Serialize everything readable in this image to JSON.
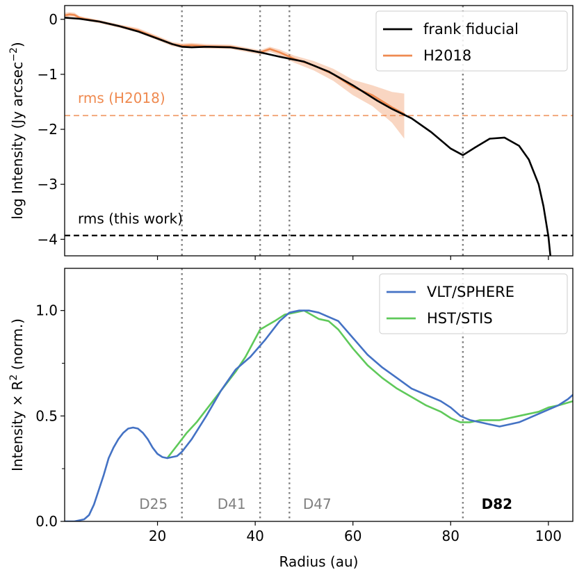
{
  "chart_data": [
    {
      "panel": "top",
      "type": "line",
      "title": "",
      "xlabel": "",
      "ylabel": "log Intensity (Jy arcsec",
      "ylabel_sup": "−2",
      "ylabel_close": ")",
      "xlim": [
        1,
        105
      ],
      "ylim": [
        -4.3,
        0.25
      ],
      "xticks": [
        20,
        40,
        60,
        80,
        100
      ],
      "yticks": [
        0,
        -1,
        -2,
        -3,
        -4
      ],
      "ytick_labels": [
        "0",
        "−1",
        "−2",
        "−3",
        "−4"
      ],
      "series": [
        {
          "name": "frank fiducial",
          "color": "#000000",
          "x": [
            1,
            4,
            8,
            12,
            16,
            20,
            23,
            25,
            27,
            30,
            35,
            38,
            41,
            45,
            50,
            55,
            60,
            65,
            68,
            72,
            76,
            80,
            82.5,
            85,
            88,
            91,
            94,
            96,
            98,
            99,
            100,
            100.4
          ],
          "y": [
            0.03,
            0.01,
            -0.04,
            -0.12,
            -0.22,
            -0.35,
            -0.45,
            -0.5,
            -0.51,
            -0.5,
            -0.51,
            -0.55,
            -0.6,
            -0.68,
            -0.77,
            -0.95,
            -1.2,
            -1.48,
            -1.63,
            -1.8,
            -2.05,
            -2.35,
            -2.47,
            -2.33,
            -2.17,
            -2.15,
            -2.3,
            -2.55,
            -3.0,
            -3.4,
            -3.95,
            -4.3
          ]
        },
        {
          "name": "H2018",
          "color": "#ef8a50",
          "x": [
            1,
            2,
            3,
            4,
            5,
            8,
            12,
            16,
            20,
            23,
            25,
            27,
            30,
            35,
            38,
            41,
            43,
            45,
            48,
            52,
            56,
            60,
            64,
            68,
            70.5
          ],
          "y": [
            0.07,
            0.09,
            0.08,
            0.03,
            0.01,
            -0.04,
            -0.12,
            -0.2,
            -0.34,
            -0.45,
            -0.48,
            -0.47,
            -0.49,
            -0.5,
            -0.55,
            -0.6,
            -0.54,
            -0.6,
            -0.72,
            -0.84,
            -1.0,
            -1.23,
            -1.38,
            -1.6,
            -1.72
          ],
          "band_upper": [
            0.12,
            0.13,
            0.12,
            0.06,
            0.04,
            -0.01,
            -0.09,
            -0.16,
            -0.3,
            -0.41,
            -0.44,
            -0.43,
            -0.45,
            -0.46,
            -0.51,
            -0.56,
            -0.5,
            -0.55,
            -0.66,
            -0.76,
            -0.9,
            -1.1,
            -1.2,
            -1.32,
            -1.35
          ],
          "band_lower": [
            0.02,
            0.05,
            0.04,
            0.0,
            -0.02,
            -0.07,
            -0.15,
            -0.24,
            -0.38,
            -0.49,
            -0.52,
            -0.51,
            -0.53,
            -0.54,
            -0.59,
            -0.64,
            -0.59,
            -0.66,
            -0.79,
            -0.93,
            -1.12,
            -1.38,
            -1.58,
            -1.88,
            -2.17
          ]
        }
      ],
      "hlines": [
        {
          "y": -1.75,
          "label": "rms (H2018)",
          "color": "#ef8a50",
          "style": "dashed"
        },
        {
          "y": -3.93,
          "label": "rms (this work)",
          "color": "#000000",
          "style": "dashed"
        }
      ],
      "legend": {
        "position": "top-right",
        "entries": [
          "frank fiducial",
          "H2018"
        ]
      }
    },
    {
      "panel": "bottom",
      "type": "line",
      "title": "",
      "xlabel": "Radius (au)",
      "ylabel": "Intensity × R",
      "ylabel_sup": "2",
      "ylabel_close": " (norm.)",
      "xlim": [
        1,
        105
      ],
      "ylim": [
        0.0,
        1.2
      ],
      "xticks": [
        20,
        40,
        60,
        80,
        100
      ],
      "xtick_labels": [
        "20",
        "40",
        "60",
        "80",
        "100"
      ],
      "yticks": [
        0.0,
        0.5,
        1.0
      ],
      "ytick_labels": [
        "0.0",
        "0.5",
        "1.0"
      ],
      "series": [
        {
          "name": "VLT/SPHERE",
          "color": "#4472c4",
          "x": [
            1,
            3,
            5,
            6,
            7,
            8,
            9,
            10,
            11,
            12,
            13,
            14,
            15,
            16,
            17,
            18,
            19,
            20,
            21,
            22,
            23,
            24,
            25,
            27,
            30,
            33,
            36,
            39,
            42,
            45,
            47,
            49,
            51,
            53,
            55,
            57,
            60,
            63,
            66,
            69,
            72,
            75,
            78,
            80,
            82,
            84,
            86,
            88,
            90,
            92,
            94,
            96,
            98,
            100,
            102,
            104,
            105
          ],
          "y": [
            0.0,
            0.0,
            0.01,
            0.03,
            0.08,
            0.15,
            0.22,
            0.3,
            0.35,
            0.39,
            0.42,
            0.44,
            0.445,
            0.44,
            0.42,
            0.39,
            0.35,
            0.32,
            0.305,
            0.3,
            0.305,
            0.31,
            0.33,
            0.39,
            0.5,
            0.62,
            0.72,
            0.78,
            0.86,
            0.95,
            0.99,
            1.0,
            1.0,
            0.99,
            0.97,
            0.95,
            0.87,
            0.79,
            0.73,
            0.68,
            0.63,
            0.6,
            0.57,
            0.54,
            0.5,
            0.48,
            0.47,
            0.46,
            0.45,
            0.46,
            0.47,
            0.49,
            0.51,
            0.53,
            0.55,
            0.58,
            0.6
          ]
        },
        {
          "name": "HST/STIS",
          "color": "#5fc95a",
          "x": [
            22,
            24,
            26,
            28,
            30,
            33,
            36,
            38,
            41,
            44,
            46,
            48,
            50,
            53,
            55,
            57,
            60,
            63,
            66,
            69,
            72,
            75,
            78,
            80,
            82,
            84,
            86,
            88,
            90,
            92,
            94,
            96,
            98,
            100,
            102,
            105
          ],
          "y": [
            0.3,
            0.36,
            0.42,
            0.47,
            0.53,
            0.62,
            0.71,
            0.78,
            0.91,
            0.95,
            0.98,
            0.99,
            1.0,
            0.96,
            0.95,
            0.91,
            0.82,
            0.74,
            0.68,
            0.63,
            0.59,
            0.55,
            0.52,
            0.49,
            0.47,
            0.47,
            0.48,
            0.48,
            0.48,
            0.49,
            0.5,
            0.51,
            0.52,
            0.54,
            0.55,
            0.57
          ]
        }
      ],
      "gap_labels": [
        {
          "x": 25,
          "text": "D25",
          "bold": false,
          "color": "#808080"
        },
        {
          "x": 41,
          "text": "D41",
          "bold": false,
          "color": "#808080"
        },
        {
          "x": 47,
          "text": "D47",
          "bold": false,
          "color": "#808080"
        },
        {
          "x": 82.5,
          "text": "D82",
          "bold": true,
          "color": "#000000"
        }
      ],
      "legend": {
        "position": "top-right",
        "entries": [
          "VLT/SPHERE",
          "HST/STIS"
        ]
      }
    }
  ],
  "gap_lines_x": [
    25,
    41,
    47,
    82.5
  ]
}
